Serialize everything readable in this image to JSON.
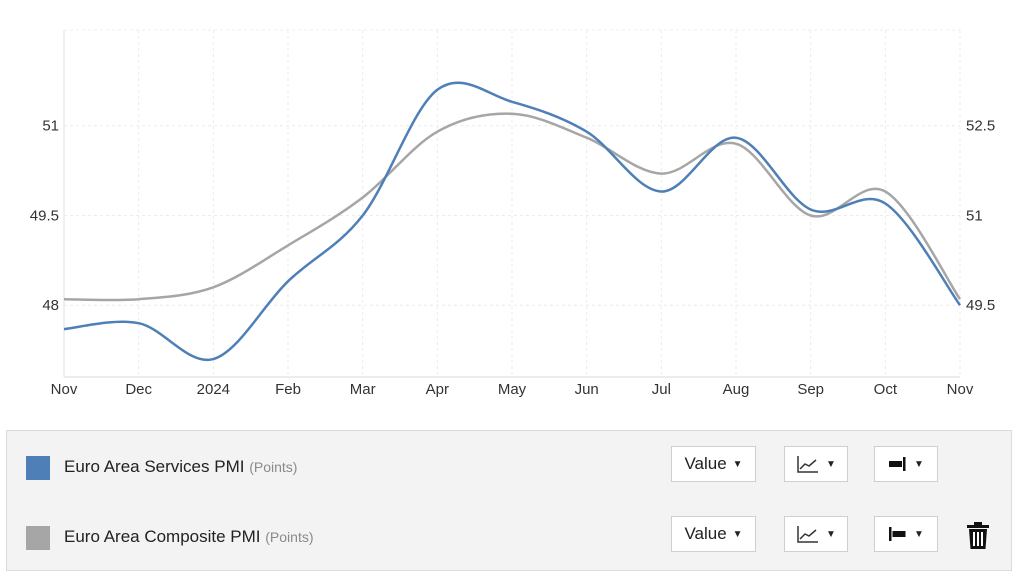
{
  "chart_data": {
    "type": "line",
    "x": [
      "Nov",
      "Dec",
      "2024",
      "Feb",
      "Mar",
      "Apr",
      "May",
      "Jun",
      "Jul",
      "Aug",
      "Sep",
      "Oct",
      "Nov"
    ],
    "series": [
      {
        "name": "Euro Area Services PMI",
        "axis": "left",
        "color": "#4f7fb7",
        "values": [
          47.6,
          47.7,
          47.1,
          48.4,
          49.5,
          51.6,
          51.4,
          50.9,
          49.9,
          50.8,
          49.6,
          49.7,
          48.0
        ]
      },
      {
        "name": "Euro Area Composite PMI",
        "axis": "right",
        "color": "#a6a6a6",
        "values": [
          49.6,
          49.6,
          49.8,
          50.5,
          51.3,
          52.4,
          52.7,
          52.3,
          51.7,
          52.2,
          51.0,
          51.4,
          49.6
        ]
      }
    ],
    "y_left": {
      "min": 46.8,
      "max": 52.6,
      "ticks": [
        "51",
        "49.5",
        "48"
      ]
    },
    "y_right": {
      "min": 48.3,
      "max": 54.1,
      "ticks": [
        "52.5",
        "51",
        "49.5"
      ]
    },
    "grid": true
  },
  "legend": {
    "rows": [
      {
        "name": "Euro Area Services PMI",
        "unit": "(Points)",
        "color": "#4f7fb7",
        "value_label": "Value",
        "chart_type_icon": "line-chart-icon",
        "axis_icon": "axis-right-icon"
      },
      {
        "name": "Euro Area Composite PMI",
        "unit": "(Points)",
        "color": "#a6a6a6",
        "value_label": "Value",
        "chart_type_icon": "line-chart-icon",
        "axis_icon": "axis-left-icon",
        "delete_icon": "trash-icon"
      }
    ]
  }
}
